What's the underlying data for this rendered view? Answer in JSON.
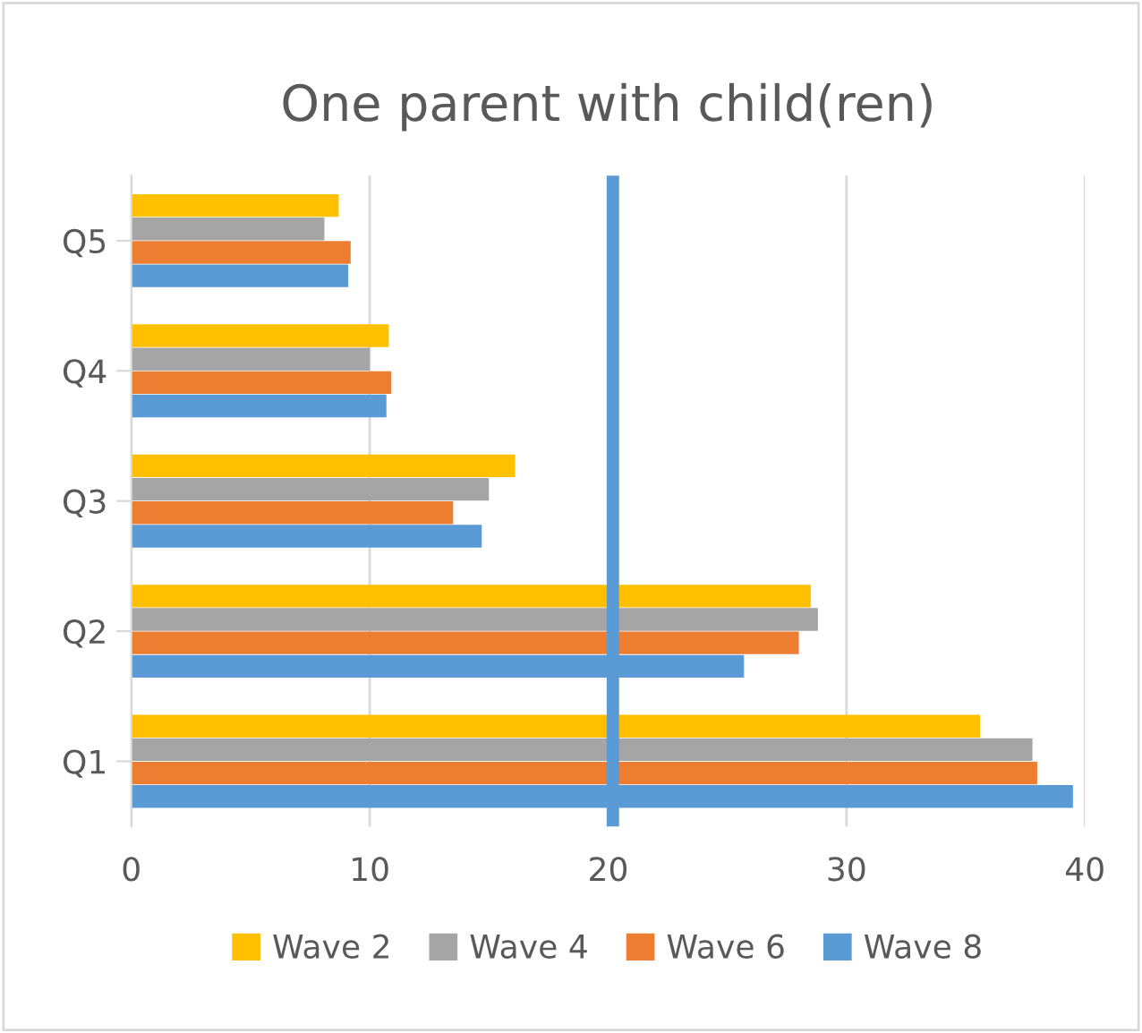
{
  "chart_data": {
    "type": "bar",
    "orientation": "horizontal",
    "title": "One parent with child(ren)",
    "categories": [
      "Q5",
      "Q4",
      "Q3",
      "Q2",
      "Q1"
    ],
    "series": [
      {
        "name": "Wave 2",
        "color": "#ffc000",
        "values": [
          8.7,
          10.8,
          16.1,
          28.5,
          35.6
        ]
      },
      {
        "name": "Wave 4",
        "color": "#a5a5a5",
        "values": [
          8.1,
          10.0,
          15.0,
          28.8,
          37.8
        ]
      },
      {
        "name": "Wave 6",
        "color": "#ed7d31",
        "values": [
          9.2,
          10.9,
          13.5,
          28.0,
          38.0
        ]
      },
      {
        "name": "Wave 8",
        "color": "#5b9bd5",
        "values": [
          9.1,
          10.7,
          14.7,
          25.7,
          39.5
        ]
      }
    ],
    "xlim": [
      0,
      40
    ],
    "xticks": [
      0,
      10,
      20,
      30,
      40
    ],
    "grid": "x",
    "legend": "bottom",
    "ref_lines": [
      {
        "axis": "x",
        "value": 20.2,
        "color": "#5b9bd5"
      }
    ]
  }
}
